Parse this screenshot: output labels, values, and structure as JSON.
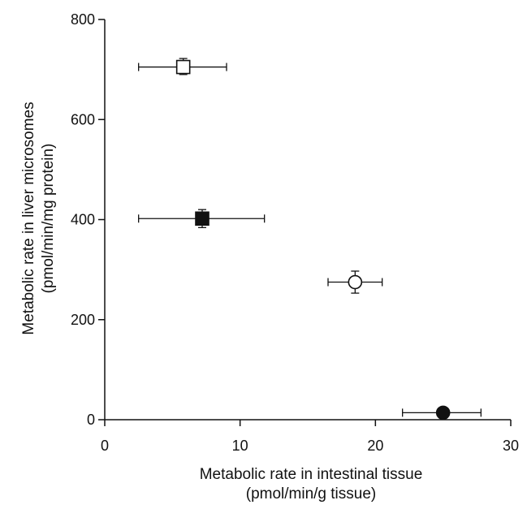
{
  "chart_data": {
    "type": "scatter",
    "title": "",
    "xlabel_lines": [
      "Metabolic rate in intestinal tissue",
      "(pmol/min/g tissue)"
    ],
    "ylabel_lines": [
      "Metabolic rate in liver microsomes",
      "(pmol/min/mg protein)"
    ],
    "xlim": [
      0,
      30
    ],
    "ylim": [
      0,
      800
    ],
    "xticks": [
      0,
      10,
      20,
      30
    ],
    "yticks": [
      0,
      200,
      400,
      600,
      800
    ],
    "xtick_labels": [
      "0",
      "10",
      "20",
      "30"
    ],
    "ytick_labels": [
      "0",
      "200",
      "400",
      "600",
      "800"
    ],
    "grid": false,
    "points": [
      {
        "marker": "open-square",
        "x": 5.8,
        "y": 705,
        "xerr_low": 2.5,
        "xerr_high": 9.0,
        "yerr_low": 690,
        "yerr_high": 722
      },
      {
        "marker": "filled-square",
        "x": 7.2,
        "y": 402,
        "xerr_low": 2.5,
        "xerr_high": 11.8,
        "yerr_low": 384,
        "yerr_high": 420
      },
      {
        "marker": "open-circle",
        "x": 18.5,
        "y": 275,
        "xerr_low": 16.5,
        "xerr_high": 20.5,
        "yerr_low": 253,
        "yerr_high": 297
      },
      {
        "marker": "filled-circle",
        "x": 25.0,
        "y": 14,
        "xerr_low": 22.0,
        "xerr_high": 27.8,
        "yerr_low": 8,
        "yerr_high": 20
      }
    ]
  }
}
